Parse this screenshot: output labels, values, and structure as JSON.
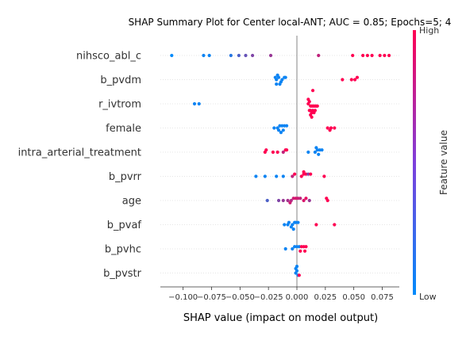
{
  "chart_data": {
    "type": "scatter",
    "subtype": "shap-beeswarm",
    "title": "SHAP Summary Plot for Center local-ANT; AUC = 0.85; Epochs=5; 4",
    "xlabel": "SHAP value (impact on model output)",
    "xlim": [
      -0.12,
      0.09
    ],
    "xticks": [
      -0.1,
      -0.075,
      -0.05,
      -0.025,
      0.0,
      0.025,
      0.05,
      0.075
    ],
    "xtick_labels": [
      "−0.100",
      "−0.075",
      "−0.050",
      "−0.025",
      "0.000",
      "0.025",
      "0.050",
      "0.075"
    ],
    "colorbar": {
      "label": "Feature value",
      "high": "High",
      "low": "Low",
      "low_color": "#008bfb",
      "high_color": "#ff0052"
    },
    "colors": {
      "zero_line": "#999999",
      "grid": "#cccccc"
    },
    "features": [
      {
        "name": "nihsco_abl_c",
        "points": [
          {
            "x": -0.11,
            "v": 0.0
          },
          {
            "x": -0.082,
            "v": 0.05
          },
          {
            "x": -0.077,
            "v": 0.05
          },
          {
            "x": -0.058,
            "v": 0.15
          },
          {
            "x": -0.051,
            "v": 0.3
          },
          {
            "x": -0.045,
            "v": 0.4
          },
          {
            "x": -0.039,
            "v": 0.5
          },
          {
            "x": -0.023,
            "v": 0.6
          },
          {
            "x": 0.019,
            "v": 0.75
          },
          {
            "x": 0.049,
            "v": 1.0
          },
          {
            "x": 0.058,
            "v": 1.0
          },
          {
            "x": 0.062,
            "v": 1.0
          },
          {
            "x": 0.066,
            "v": 1.0
          },
          {
            "x": 0.073,
            "v": 1.0
          },
          {
            "x": 0.077,
            "v": 1.0
          },
          {
            "x": 0.081,
            "v": 1.0
          }
        ]
      },
      {
        "name": "b_pvdm",
        "points": [
          {
            "x": -0.018,
            "v": 0.05
          },
          {
            "x": -0.016,
            "v": 0.05
          },
          {
            "x": -0.013,
            "v": 0.05
          },
          {
            "x": -0.011,
            "v": 0.05
          },
          {
            "x": -0.019,
            "v": 0.05
          },
          {
            "x": -0.014,
            "v": 0.05
          },
          {
            "x": -0.017,
            "v": 0.05
          },
          {
            "x": -0.01,
            "v": 0.05
          },
          {
            "x": -0.015,
            "v": 0.05
          },
          {
            "x": -0.018,
            "v": 0.05
          },
          {
            "x": 0.04,
            "v": 1.0
          },
          {
            "x": 0.048,
            "v": 1.0
          },
          {
            "x": 0.051,
            "v": 1.0
          },
          {
            "x": 0.053,
            "v": 1.0
          }
        ]
      },
      {
        "name": "r_ivtrom",
        "points": [
          {
            "x": -0.09,
            "v": 0.05
          },
          {
            "x": -0.086,
            "v": 0.05
          },
          {
            "x": 0.01,
            "v": 1.0
          },
          {
            "x": 0.011,
            "v": 1.0
          },
          {
            "x": 0.012,
            "v": 1.0
          },
          {
            "x": 0.013,
            "v": 1.0
          },
          {
            "x": 0.014,
            "v": 1.0
          },
          {
            "x": 0.015,
            "v": 1.0
          },
          {
            "x": 0.016,
            "v": 1.0
          },
          {
            "x": 0.017,
            "v": 1.0
          },
          {
            "x": 0.018,
            "v": 1.0
          },
          {
            "x": 0.01,
            "v": 1.0
          },
          {
            "x": 0.012,
            "v": 1.0
          },
          {
            "x": 0.014,
            "v": 1.0
          },
          {
            "x": 0.016,
            "v": 1.0
          },
          {
            "x": 0.011,
            "v": 1.0
          },
          {
            "x": 0.013,
            "v": 1.0
          },
          {
            "x": 0.015,
            "v": 1.0
          },
          {
            "x": 0.012,
            "v": 1.0
          },
          {
            "x": 0.014,
            "v": 1.0
          },
          {
            "x": 0.013,
            "v": 1.0
          }
        ]
      },
      {
        "name": "female",
        "points": [
          {
            "x": -0.02,
            "v": 0.05
          },
          {
            "x": -0.017,
            "v": 0.05
          },
          {
            "x": -0.015,
            "v": 0.05
          },
          {
            "x": -0.013,
            "v": 0.05
          },
          {
            "x": -0.011,
            "v": 0.05
          },
          {
            "x": -0.009,
            "v": 0.05
          },
          {
            "x": -0.016,
            "v": 0.05
          },
          {
            "x": -0.012,
            "v": 0.05
          },
          {
            "x": -0.014,
            "v": 0.05
          },
          {
            "x": 0.027,
            "v": 1.0
          },
          {
            "x": 0.03,
            "v": 1.0
          },
          {
            "x": 0.033,
            "v": 1.0
          },
          {
            "x": 0.029,
            "v": 1.0
          }
        ]
      },
      {
        "name": "intra_arterial_treatment",
        "points": [
          {
            "x": -0.028,
            "v": 1.0
          },
          {
            "x": -0.027,
            "v": 1.0
          },
          {
            "x": -0.021,
            "v": 1.0
          },
          {
            "x": -0.017,
            "v": 1.0
          },
          {
            "x": -0.012,
            "v": 0.75
          },
          {
            "x": -0.01,
            "v": 1.0
          },
          {
            "x": -0.009,
            "v": 1.0
          },
          {
            "x": 0.01,
            "v": 0.05
          },
          {
            "x": 0.016,
            "v": 0.05
          },
          {
            "x": 0.018,
            "v": 0.05
          },
          {
            "x": 0.02,
            "v": 0.05
          },
          {
            "x": 0.022,
            "v": 0.05
          },
          {
            "x": 0.019,
            "v": 0.05
          },
          {
            "x": 0.017,
            "v": 0.05
          }
        ]
      },
      {
        "name": "b_pvrr",
        "points": [
          {
            "x": -0.036,
            "v": 0.05
          },
          {
            "x": -0.028,
            "v": 0.05
          },
          {
            "x": -0.018,
            "v": 0.05
          },
          {
            "x": -0.012,
            "v": 0.05
          },
          {
            "x": -0.004,
            "v": 0.75
          },
          {
            "x": -0.002,
            "v": 1.0
          },
          {
            "x": 0.004,
            "v": 1.0
          },
          {
            "x": 0.006,
            "v": 1.0
          },
          {
            "x": 0.008,
            "v": 1.0
          },
          {
            "x": 0.01,
            "v": 0.5
          },
          {
            "x": 0.012,
            "v": 1.0
          },
          {
            "x": 0.006,
            "v": 1.0
          },
          {
            "x": 0.024,
            "v": 1.0
          }
        ]
      },
      {
        "name": "age",
        "points": [
          {
            "x": -0.026,
            "v": 0.3
          },
          {
            "x": -0.016,
            "v": 0.5
          },
          {
            "x": -0.012,
            "v": 0.6
          },
          {
            "x": -0.008,
            "v": 0.65
          },
          {
            "x": -0.005,
            "v": 0.7
          },
          {
            "x": -0.003,
            "v": 0.8
          },
          {
            "x": -0.001,
            "v": 0.85
          },
          {
            "x": 0.001,
            "v": 0.8
          },
          {
            "x": 0.003,
            "v": 0.75
          },
          {
            "x": 0.006,
            "v": 0.85
          },
          {
            "x": 0.008,
            "v": 0.9
          },
          {
            "x": 0.011,
            "v": 0.6
          },
          {
            "x": -0.006,
            "v": 0.8
          },
          {
            "x": 0.027,
            "v": 1.0
          },
          {
            "x": 0.026,
            "v": 1.0
          }
        ]
      },
      {
        "name": "b_pvaf",
        "points": [
          {
            "x": -0.008,
            "v": 0.05
          },
          {
            "x": -0.004,
            "v": 0.05
          },
          {
            "x": -0.002,
            "v": 0.05
          },
          {
            "x": -0.011,
            "v": 0.05
          },
          {
            "x": -0.007,
            "v": 0.05
          },
          {
            "x": -0.005,
            "v": 0.05
          },
          {
            "x": -0.001,
            "v": 0.05
          },
          {
            "x": 0.001,
            "v": 0.05
          },
          {
            "x": -0.003,
            "v": 0.05
          },
          {
            "x": 0.017,
            "v": 1.0
          },
          {
            "x": 0.033,
            "v": 1.0
          }
        ]
      },
      {
        "name": "b_pvhc",
        "points": [
          {
            "x": -0.01,
            "v": 0.05
          },
          {
            "x": -0.004,
            "v": 0.05
          },
          {
            "x": -0.002,
            "v": 0.05
          },
          {
            "x": 0.0,
            "v": 0.05
          },
          {
            "x": 0.002,
            "v": 0.05
          },
          {
            "x": 0.004,
            "v": 1.0
          },
          {
            "x": 0.006,
            "v": 1.0
          },
          {
            "x": 0.008,
            "v": 1.0
          },
          {
            "x": 0.007,
            "v": 1.0
          },
          {
            "x": 0.003,
            "v": 1.0
          }
        ]
      },
      {
        "name": "b_pvstr",
        "points": [
          {
            "x": -0.001,
            "v": 0.05
          },
          {
            "x": 0.0,
            "v": 0.05
          },
          {
            "x": 0.001,
            "v": 0.05
          },
          {
            "x": 0.002,
            "v": 1.0
          },
          {
            "x": -0.001,
            "v": 0.05
          },
          {
            "x": 0.0,
            "v": 0.05
          }
        ]
      }
    ]
  }
}
